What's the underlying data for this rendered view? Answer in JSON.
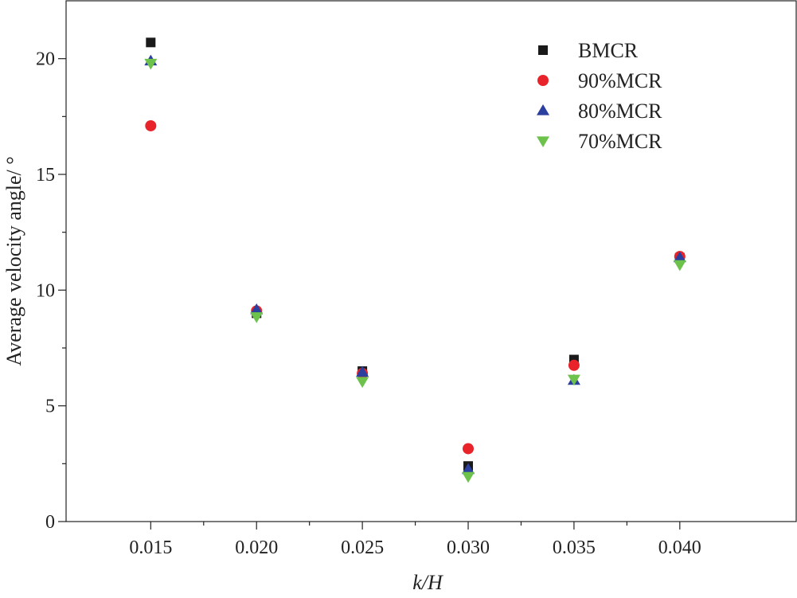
{
  "chart_data": {
    "type": "scatter",
    "title": "",
    "xlabel": "k/H",
    "ylabel": "Average velocity angle/ °",
    "xlim": [
      0.011,
      0.0455
    ],
    "ylim": [
      0,
      22.5
    ],
    "x_ticks": [
      "0.015",
      "0.020",
      "0.025",
      "0.030",
      "0.035",
      "0.040"
    ],
    "y_ticks": [
      "0",
      "5",
      "10",
      "15",
      "20"
    ],
    "x": [
      0.015,
      0.02,
      0.025,
      0.03,
      0.035,
      0.04
    ],
    "grid": false,
    "legend_position": "top-right",
    "series": [
      {
        "name": "BMCR",
        "marker": "square",
        "color": "#1a1a1a",
        "values": [
          20.7,
          9.0,
          6.5,
          2.4,
          7.0,
          11.4
        ]
      },
      {
        "name": "90%MCR",
        "marker": "circle",
        "color": "#e8242a",
        "values": [
          17.1,
          9.1,
          6.4,
          3.15,
          6.75,
          11.45
        ]
      },
      {
        "name": "80%MCR",
        "marker": "triangle-up",
        "color": "#2b3f9e",
        "values": [
          19.9,
          9.15,
          6.45,
          2.25,
          6.1,
          11.4
        ]
      },
      {
        "name": "70%MCR",
        "marker": "triangle-down",
        "color": "#6cc24a",
        "values": [
          19.8,
          8.85,
          6.05,
          1.95,
          6.15,
          11.1
        ]
      }
    ]
  }
}
